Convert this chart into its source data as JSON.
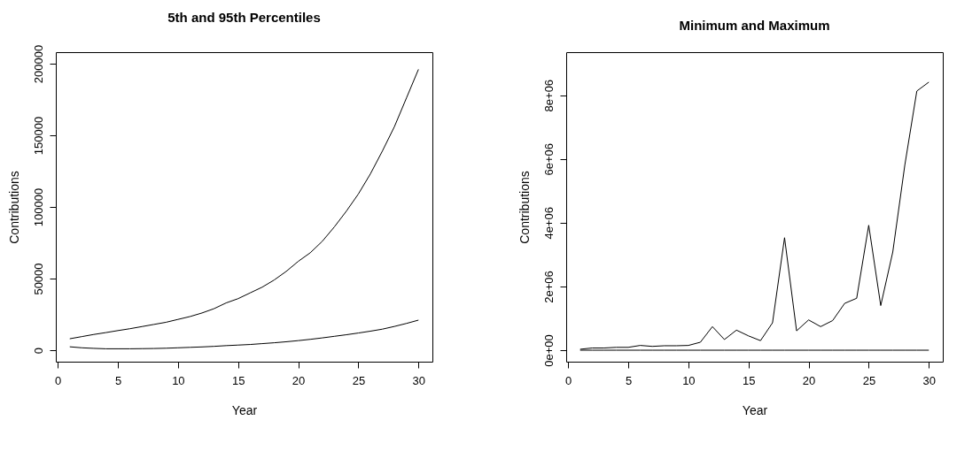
{
  "chart_data": [
    {
      "type": "line",
      "title": "5th and 95th Percentiles",
      "xlabel": "Year",
      "ylabel": "Contributions",
      "line_style": "solid",
      "x": [
        1,
        2,
        3,
        4,
        5,
        6,
        7,
        8,
        9,
        10,
        11,
        12,
        13,
        14,
        15,
        16,
        17,
        18,
        19,
        20,
        21,
        22,
        23,
        24,
        25,
        26,
        27,
        28,
        29,
        30
      ],
      "series": [
        {
          "color": "#000000",
          "values": [
            8000,
            9500,
            11000,
            12300,
            13700,
            15000,
            16500,
            18000,
            19500,
            21500,
            23500,
            26000,
            29000,
            33000,
            36000,
            40000,
            44000,
            49000,
            55000,
            62000,
            68000,
            76000,
            86000,
            97000,
            109000,
            123000,
            139000,
            156000,
            176000,
            196000
          ]
        },
        {
          "color": "#000000",
          "values": [
            2400,
            1700,
            1300,
            1000,
            1000,
            1000,
            1100,
            1200,
            1400,
            1700,
            2000,
            2300,
            2700,
            3200,
            3600,
            4000,
            4600,
            5200,
            5900,
            6700,
            7600,
            8600,
            9700,
            10800,
            12000,
            13300,
            14700,
            16600,
            18700,
            21000
          ]
        }
      ],
      "xlim": [
        -0.16,
        31.16
      ],
      "xticks": [
        0,
        5,
        10,
        15,
        20,
        25,
        30
      ],
      "ylim": [
        -8000,
        208000
      ],
      "yticks": [
        0,
        50000,
        100000,
        150000,
        200000
      ]
    },
    {
      "type": "line",
      "title": "Minimum and Maximum",
      "xlabel": "Year",
      "ylabel": "Contributions",
      "line_style": "solid",
      "x": [
        1,
        2,
        3,
        4,
        5,
        6,
        7,
        8,
        9,
        10,
        11,
        12,
        13,
        14,
        15,
        16,
        17,
        18,
        19,
        20,
        21,
        22,
        23,
        24,
        25,
        26,
        27,
        28,
        29,
        30
      ],
      "series": [
        {
          "color": "#000000",
          "values": [
            30000,
            70000,
            70000,
            90000,
            90000,
            150000,
            120000,
            140000,
            140000,
            150000,
            250000,
            740000,
            335000,
            630000,
            450000,
            300000,
            860000,
            3530000,
            607000,
            950000,
            740000,
            930000,
            1470000,
            1630000,
            3920000,
            1400000,
            3080000,
            5800000,
            8130000,
            8410000
          ]
        },
        {
          "color": "#000000",
          "values": [
            0,
            0,
            0,
            0,
            0,
            0,
            0,
            0,
            0,
            0,
            0,
            0,
            0,
            0,
            0,
            0,
            0,
            0,
            0,
            0,
            0,
            0,
            0,
            0,
            0,
            0,
            0,
            0,
            0,
            0
          ]
        }
      ],
      "xlim": [
        -0.16,
        31.16
      ],
      "xticks": [
        0,
        5,
        10,
        15,
        20,
        25,
        30
      ],
      "ylim": [
        -360000,
        9350000
      ],
      "yticks": [
        {
          "value": 0,
          "label": "0e+00"
        },
        {
          "value": 2000000,
          "label": "2e+06"
        },
        {
          "value": 4000000,
          "label": "4e+06"
        },
        {
          "value": 6000000,
          "label": "6e+06"
        },
        {
          "value": 8000000,
          "label": "8e+06"
        }
      ]
    }
  ]
}
